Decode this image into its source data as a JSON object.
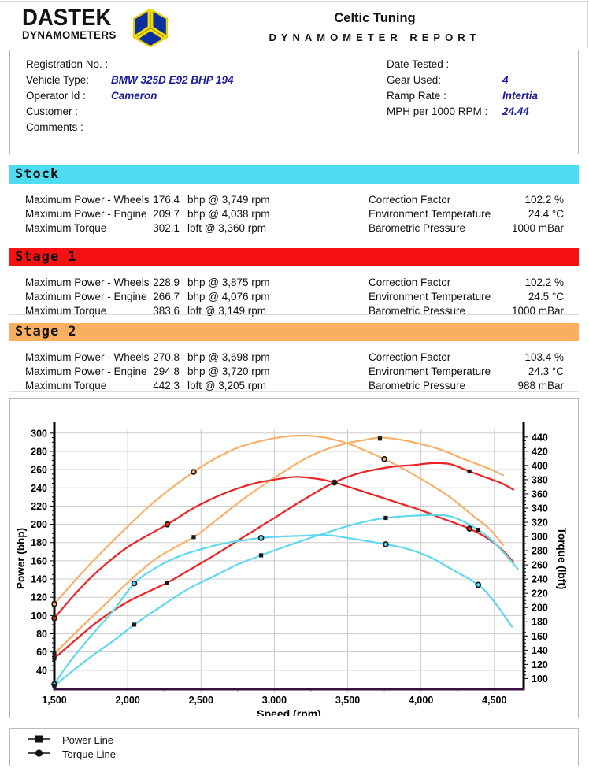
{
  "header": {
    "logo_text": "DASTEK",
    "logo_sub": "DYNAMOMETERS",
    "title": "Celtic Tuning",
    "subtitle": "DYNAMOMETER REPORT"
  },
  "info": {
    "left": [
      {
        "label": "Registration No. :",
        "value": ""
      },
      {
        "label": "Vehicle Type:",
        "value": "BMW 325D E92 BHP 194"
      },
      {
        "label": "Operator Id :",
        "value": "Cameron"
      },
      {
        "label": "Customer :",
        "value": ""
      },
      {
        "label": "Comments :",
        "value": ""
      }
    ],
    "right": [
      {
        "label": "Date Tested :",
        "value": ""
      },
      {
        "label": "Gear Used:",
        "value": "4"
      },
      {
        "label": "Ramp Rate :",
        "value": "Intertia"
      },
      {
        "label": "MPH per 1000 RPM :",
        "value": "24.44"
      }
    ]
  },
  "sections": [
    {
      "name": "Stock",
      "color": "#4edcf0",
      "rows": [
        {
          "label": "Maximum Power - Wheels",
          "value": "176.4",
          "unit": "bhp @ 3,749 rpm"
        },
        {
          "label": "Maximum Power - Engine",
          "value": "209.7",
          "unit": "bhp @ 4,038 rpm"
        },
        {
          "label": "Maximum Torque",
          "value": "302.1",
          "unit": "lbft @ 3,360 rpm"
        }
      ],
      "env": [
        {
          "label": "Correction Factor",
          "value": "102.2 %"
        },
        {
          "label": "Environment Temperature",
          "value": "24.4 °C"
        },
        {
          "label": "Barometric Pressure",
          "value": "1000 mBar"
        }
      ]
    },
    {
      "name": "Stage 1",
      "color": "#f51111",
      "rows": [
        {
          "label": "Maximum Power - Wheels",
          "value": "228.9",
          "unit": "bhp @ 3,875 rpm"
        },
        {
          "label": "Maximum Power - Engine",
          "value": "266.7",
          "unit": "bhp @ 4,076 rpm"
        },
        {
          "label": "Maximum Torque",
          "value": "383.6",
          "unit": "lbft @ 3,149 rpm"
        }
      ],
      "env": [
        {
          "label": "Correction Factor",
          "value": "102.2 %"
        },
        {
          "label": "Environment Temperature",
          "value": "24.5 °C"
        },
        {
          "label": "Barometric Pressure",
          "value": "1000 mBar"
        }
      ]
    },
    {
      "name": "Stage 2",
      "color": "#f9af60",
      "rows": [
        {
          "label": "Maximum Power - Wheels",
          "value": "270.8",
          "unit": "bhp @ 3,698 rpm"
        },
        {
          "label": "Maximum Power - Engine",
          "value": "294.8",
          "unit": "bhp @ 3,720 rpm"
        },
        {
          "label": "Maximum Torque",
          "value": "442.3",
          "unit": "lbft @ 3,205 rpm"
        }
      ],
      "env": [
        {
          "label": "Correction Factor",
          "value": "103.4 %"
        },
        {
          "label": "Environment Temperature",
          "value": "24.3 °C"
        },
        {
          "label": "Barometric Pressure",
          "value": "988 mBar"
        }
      ]
    }
  ],
  "chart_data": {
    "type": "line",
    "xlabel": "Speed (rpm)",
    "ylabel_left": "Power (bhp)",
    "ylabel_right": "Torque (lbft)",
    "x_range": [
      1500,
      4700
    ],
    "x_major_ticks": [
      1500,
      2000,
      2500,
      3000,
      3500,
      4000,
      4500
    ],
    "x_minor_step": 250,
    "power_axis": {
      "range": [
        20,
        305
      ],
      "tick_from": 40,
      "tick_to": 300,
      "tick_step": 20,
      "minor_step": 5
    },
    "torque_axis": {
      "range": [
        86,
        452
      ],
      "tick_from": 100,
      "tick_to": 440,
      "tick_step": 20,
      "minor_step": 5
    },
    "grid": true,
    "legend_position": "bottom-outside",
    "axis_colors": {
      "left": "#000000",
      "right": "#000000",
      "bottom": "#3a1040",
      "grid": "#cccccc"
    },
    "series": [
      {
        "name": "Stage 2 Torque",
        "axis": "torque",
        "color": "#f8b068",
        "marker": "circle",
        "points": [
          [
            1500,
            205
          ],
          [
            1650,
            240
          ],
          [
            1800,
            273
          ],
          [
            2000,
            314
          ],
          [
            2200,
            352
          ],
          [
            2450,
            391
          ],
          [
            2600,
            410
          ],
          [
            2750,
            425
          ],
          [
            2900,
            434
          ],
          [
            3050,
            440
          ],
          [
            3205,
            442
          ],
          [
            3350,
            439
          ],
          [
            3500,
            431
          ],
          [
            3620,
            421
          ],
          [
            3750,
            409
          ],
          [
            3900,
            393
          ],
          [
            4050,
            375
          ],
          [
            4200,
            355
          ],
          [
            4350,
            330
          ],
          [
            4470,
            310
          ],
          [
            4560,
            288
          ]
        ],
        "markers": [
          [
            1500,
            205
          ],
          [
            2450,
            391
          ],
          [
            3750,
            409
          ]
        ]
      },
      {
        "name": "Stage 2 Power",
        "axis": "power",
        "color": "#f8b068",
        "marker": "square",
        "points": [
          [
            1500,
            58
          ],
          [
            1650,
            82
          ],
          [
            1800,
            105
          ],
          [
            2000,
            136
          ],
          [
            2200,
            163
          ],
          [
            2450,
            186
          ],
          [
            2600,
            204
          ],
          [
            2800,
            229
          ],
          [
            3000,
            251
          ],
          [
            3200,
            271
          ],
          [
            3350,
            282
          ],
          [
            3500,
            289
          ],
          [
            3600,
            292
          ],
          [
            3720,
            295
          ],
          [
            3850,
            293
          ],
          [
            4000,
            288
          ],
          [
            4150,
            281
          ],
          [
            4300,
            271
          ],
          [
            4450,
            262
          ],
          [
            4560,
            254
          ]
        ],
        "markers": [
          [
            1500,
            58
          ],
          [
            2450,
            186
          ],
          [
            3720,
            294
          ]
        ]
      },
      {
        "name": "Stage 1 Torque",
        "axis": "torque",
        "color": "#ee2222",
        "marker": "circle",
        "points": [
          [
            1500,
            185
          ],
          [
            1650,
            221
          ],
          [
            1800,
            252
          ],
          [
            2000,
            285
          ],
          [
            2270,
            317
          ],
          [
            2450,
            340
          ],
          [
            2650,
            360
          ],
          [
            2850,
            374
          ],
          [
            3000,
            380
          ],
          [
            3149,
            384
          ],
          [
            3300,
            381
          ],
          [
            3410,
            376
          ],
          [
            3550,
            367
          ],
          [
            3700,
            357
          ],
          [
            3850,
            347
          ],
          [
            4000,
            337
          ],
          [
            4150,
            325
          ],
          [
            4330,
            311
          ],
          [
            4450,
            298
          ],
          [
            4550,
            282
          ],
          [
            4630,
            264
          ]
        ],
        "markers": [
          [
            1500,
            185
          ],
          [
            2270,
            317
          ],
          [
            3410,
            376
          ],
          [
            4330,
            311
          ]
        ]
      },
      {
        "name": "Stage 1 Power",
        "axis": "power",
        "color": "#ee2222",
        "marker": "square",
        "points": [
          [
            1500,
            53
          ],
          [
            1650,
            74
          ],
          [
            1800,
            94
          ],
          [
            2000,
            115
          ],
          [
            2270,
            136
          ],
          [
            2400,
            148
          ],
          [
            2600,
            167
          ],
          [
            2800,
            187
          ],
          [
            3000,
            207
          ],
          [
            3200,
            227
          ],
          [
            3410,
            246
          ],
          [
            3600,
            257
          ],
          [
            3800,
            263
          ],
          [
            3950,
            265
          ],
          [
            4076,
            267
          ],
          [
            4200,
            266
          ],
          [
            4330,
            258
          ],
          [
            4450,
            251
          ],
          [
            4550,
            245
          ],
          [
            4630,
            238
          ]
        ],
        "markers": [
          [
            1500,
            53
          ],
          [
            2270,
            136
          ],
          [
            3410,
            246
          ],
          [
            4330,
            258
          ]
        ]
      },
      {
        "name": "Stock Torque",
        "axis": "torque",
        "color": "#5fd8ef",
        "marker": "circle",
        "points": [
          [
            1500,
            92
          ],
          [
            1600,
            122
          ],
          [
            1750,
            160
          ],
          [
            1900,
            195
          ],
          [
            2045,
            234
          ],
          [
            2200,
            257
          ],
          [
            2350,
            272
          ],
          [
            2500,
            282
          ],
          [
            2650,
            290
          ],
          [
            2800,
            295
          ],
          [
            2910,
            298
          ],
          [
            3050,
            300
          ],
          [
            3200,
            301
          ],
          [
            3360,
            302
          ],
          [
            3500,
            298
          ],
          [
            3650,
            293
          ],
          [
            3760,
            289
          ],
          [
            3900,
            283
          ],
          [
            4050,
            272
          ],
          [
            4200,
            255
          ],
          [
            4390,
            232
          ],
          [
            4500,
            208
          ],
          [
            4620,
            173
          ]
        ],
        "markers": [
          [
            1500,
            92
          ],
          [
            2045,
            234
          ],
          [
            2910,
            298
          ],
          [
            3760,
            289
          ],
          [
            4390,
            232
          ]
        ]
      },
      {
        "name": "Stock Power",
        "axis": "power",
        "color": "#5fd8ef",
        "marker": "square",
        "points": [
          [
            1500,
            23
          ],
          [
            1600,
            36
          ],
          [
            1750,
            55
          ],
          [
            1900,
            72
          ],
          [
            2045,
            90
          ],
          [
            2200,
            107
          ],
          [
            2400,
            128
          ],
          [
            2600,
            144
          ],
          [
            2750,
            156
          ],
          [
            2910,
            166
          ],
          [
            3100,
            177
          ],
          [
            3300,
            188
          ],
          [
            3500,
            198
          ],
          [
            3650,
            204
          ],
          [
            3760,
            207
          ],
          [
            3900,
            209
          ],
          [
            4040,
            210
          ],
          [
            4150,
            210
          ],
          [
            4250,
            206
          ],
          [
            4390,
            194
          ],
          [
            4480,
            183
          ],
          [
            4570,
            168
          ],
          [
            4660,
            151
          ]
        ],
        "markers": [
          [
            1500,
            23
          ],
          [
            2045,
            90
          ],
          [
            2910,
            166
          ],
          [
            3760,
            207
          ],
          [
            4390,
            194
          ]
        ]
      }
    ]
  },
  "legend": [
    {
      "label": "Power Line",
      "marker": "square"
    },
    {
      "label": "Torque Line",
      "marker": "circle"
    }
  ]
}
